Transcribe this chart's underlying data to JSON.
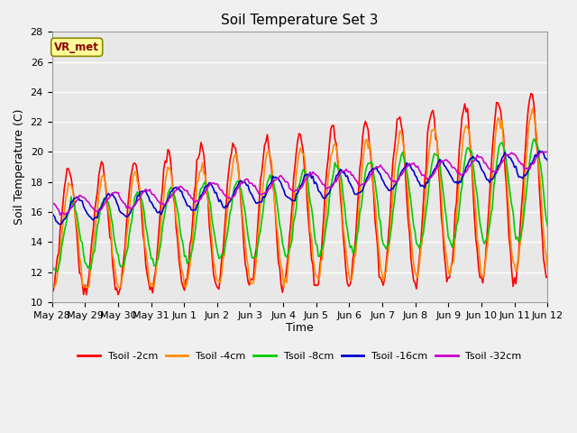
{
  "title": "Soil Temperature Set 3",
  "xlabel": "Time",
  "ylabel": "Soil Temperature (C)",
  "ylim": [
    10,
    28
  ],
  "yticks": [
    10,
    12,
    14,
    16,
    18,
    20,
    22,
    24,
    26,
    28
  ],
  "annotation_text": "VR_met",
  "bg_color": "#e8e8e8",
  "fig_bg_color": "#f0f0f0",
  "line_colors": {
    "Tsoil -2cm": "#ff0000",
    "Tsoil -4cm": "#ff8c00",
    "Tsoil -8cm": "#00cc00",
    "Tsoil -16cm": "#0000cc",
    "Tsoil -32cm": "#cc00cc"
  },
  "x_tick_labels": [
    "May 28",
    "May 29",
    "May 30",
    "May 31",
    "Jun 1",
    "Jun 2",
    "Jun 3",
    "Jun 4",
    "Jun 5",
    "Jun 6",
    "Jun 7",
    "Jun 8",
    "Jun 9",
    "Jun 10",
    "Jun 11",
    "Jun 12"
  ]
}
